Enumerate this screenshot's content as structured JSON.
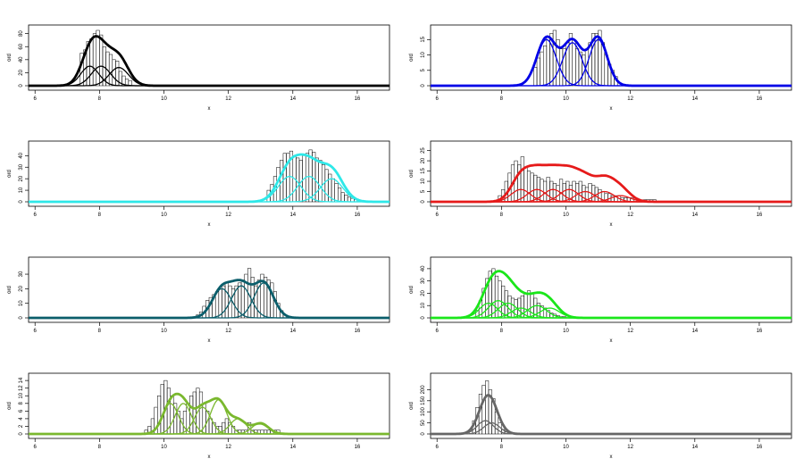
{
  "chart_data": [
    {
      "type": "histogram-density",
      "color": "#000000",
      "xlabel": "x",
      "ylabel": "ord",
      "xlim": [
        5.8,
        17
      ],
      "x_ticks": [
        6,
        8,
        10,
        12,
        14,
        16
      ],
      "ylim": [
        0,
        85
      ],
      "y_ticks": [
        0,
        20,
        40,
        60,
        80
      ],
      "hist": {
        "start": 7.4,
        "end": 9.0,
        "heights": [
          50,
          55,
          68,
          72,
          80,
          85,
          78,
          60,
          52,
          48,
          40,
          38,
          22,
          15,
          10,
          8
        ]
      },
      "components": [
        {
          "mean": 7.7,
          "sd": 0.28,
          "peak": 30
        },
        {
          "mean": 8.05,
          "sd": 0.3,
          "peak": 30
        },
        {
          "mean": 8.6,
          "sd": 0.3,
          "peak": 28
        }
      ],
      "mixture_peak": 76
    },
    {
      "type": "histogram-density",
      "color": "#0000e6",
      "xlabel": "x",
      "ylabel": "ord",
      "xlim": [
        5.8,
        17
      ],
      "x_ticks": [
        6,
        8,
        10,
        12,
        14,
        16
      ],
      "ylim": [
        0,
        18
      ],
      "y_ticks": [
        0,
        5,
        10,
        15
      ],
      "hist": {
        "start": 9.0,
        "end": 11.6,
        "heights": [
          6,
          9,
          11,
          13,
          16,
          17,
          18,
          15,
          12,
          12,
          14,
          17,
          15,
          12,
          11,
          10,
          12,
          14,
          17,
          17,
          18,
          14,
          10,
          7,
          5,
          3
        ]
      },
      "components": [
        {
          "mean": 9.4,
          "sd": 0.3,
          "peak": 15
        },
        {
          "mean": 10.2,
          "sd": 0.3,
          "peak": 14
        },
        {
          "mean": 11.0,
          "sd": 0.28,
          "peak": 15
        }
      ],
      "mixture_peak": 16
    },
    {
      "type": "histogram-density",
      "color": "#2ee8e8",
      "xlabel": "x",
      "ylabel": "ord",
      "xlim": [
        5.8,
        17
      ],
      "x_ticks": [
        6,
        8,
        10,
        12,
        14,
        16
      ],
      "ylim": [
        0,
        48
      ],
      "y_ticks": [
        0,
        10,
        20,
        30,
        40
      ],
      "hist": {
        "start": 13.2,
        "end": 16.0,
        "heights": [
          10,
          15,
          22,
          30,
          36,
          42,
          42,
          44,
          40,
          38,
          36,
          40,
          42,
          45,
          43,
          38,
          36,
          32,
          28,
          24,
          20,
          16,
          12,
          8,
          6,
          4,
          3,
          2
        ]
      },
      "components": [
        {
          "mean": 13.9,
          "sd": 0.35,
          "peak": 22
        },
        {
          "mean": 14.5,
          "sd": 0.35,
          "peak": 22
        },
        {
          "mean": 15.2,
          "sd": 0.35,
          "peak": 20
        }
      ],
      "mixture_peak": 41
    },
    {
      "type": "histogram-density",
      "color": "#e61a1a",
      "xlabel": "x",
      "ylabel": "ord",
      "xlim": [
        5.8,
        17
      ],
      "x_ticks": [
        6,
        8,
        10,
        12,
        14,
        16
      ],
      "ylim": [
        0,
        27
      ],
      "y_ticks": [
        0,
        5,
        10,
        15,
        20,
        25
      ],
      "hist": {
        "start": 7.9,
        "end": 12.8,
        "heights": [
          3,
          6,
          10,
          14,
          18,
          20,
          18,
          22,
          17,
          15,
          14,
          13,
          12,
          11,
          10,
          12,
          10,
          9,
          8,
          11,
          9,
          10,
          8,
          10,
          9,
          10,
          8,
          7,
          9,
          8,
          7,
          6,
          5,
          4,
          4,
          3,
          3,
          3,
          2,
          2,
          2,
          2,
          1,
          1,
          1,
          1,
          1,
          1,
          1
        ]
      },
      "components": [
        {
          "mean": 8.6,
          "sd": 0.3,
          "peak": 6
        },
        {
          "mean": 9.1,
          "sd": 0.3,
          "peak": 6
        },
        {
          "mean": 9.6,
          "sd": 0.3,
          "peak": 6
        },
        {
          "mean": 10.1,
          "sd": 0.3,
          "peak": 6
        },
        {
          "mean": 10.6,
          "sd": 0.3,
          "peak": 5
        },
        {
          "mean": 11.2,
          "sd": 0.3,
          "peak": 5
        },
        {
          "mean": 11.7,
          "sd": 0.3,
          "peak": 3
        }
      ],
      "mixture_peak": 18
    },
    {
      "type": "histogram-density",
      "color": "#0b5e6b",
      "xlabel": "x",
      "ylabel": "ord",
      "xlim": [
        5.8,
        17
      ],
      "x_ticks": [
        6,
        8,
        10,
        12,
        14,
        16
      ],
      "ylim": [
        0,
        38
      ],
      "y_ticks": [
        0,
        10,
        20,
        30
      ],
      "hist": {
        "start": 11.0,
        "end": 13.8,
        "heights": [
          2,
          4,
          8,
          12,
          14,
          16,
          18,
          20,
          22,
          24,
          22,
          20,
          22,
          24,
          26,
          30,
          34,
          28,
          22,
          26,
          30,
          28,
          26,
          24,
          18,
          10,
          5,
          2
        ]
      },
      "components": [
        {
          "mean": 11.8,
          "sd": 0.3,
          "peak": 20
        },
        {
          "mean": 12.4,
          "sd": 0.3,
          "peak": 22
        },
        {
          "mean": 13.1,
          "sd": 0.3,
          "peak": 24
        }
      ],
      "mixture_peak": 26
    },
    {
      "type": "histogram-density",
      "color": "#1ae61a",
      "xlabel": "x",
      "ylabel": "ord",
      "xlim": [
        5.8,
        17
      ],
      "x_ticks": [
        6,
        8,
        10,
        12,
        14,
        16
      ],
      "ylim": [
        0,
        45
      ],
      "y_ticks": [
        0,
        10,
        20,
        30,
        40
      ],
      "hist": {
        "start": 7.2,
        "end": 10.0,
        "heights": [
          6,
          14,
          24,
          32,
          38,
          40,
          34,
          30,
          26,
          22,
          18,
          16,
          15,
          16,
          18,
          20,
          22,
          20,
          16,
          12,
          10,
          8,
          6,
          4,
          3,
          2,
          1,
          1
        ]
      },
      "components": [
        {
          "mean": 7.6,
          "sd": 0.28,
          "peak": 12
        },
        {
          "mean": 7.9,
          "sd": 0.3,
          "peak": 14
        },
        {
          "mean": 8.2,
          "sd": 0.3,
          "peak": 12
        },
        {
          "mean": 8.6,
          "sd": 0.3,
          "peak": 8
        },
        {
          "mean": 9.1,
          "sd": 0.3,
          "peak": 10
        },
        {
          "mean": 9.5,
          "sd": 0.3,
          "peak": 8
        }
      ],
      "mixture_peak": 38
    },
    {
      "type": "histogram-density",
      "color": "#7ab82e",
      "xlabel": "x",
      "ylabel": "ord",
      "xlim": [
        5.8,
        17
      ],
      "x_ticks": [
        6,
        8,
        10,
        12,
        14,
        16
      ],
      "ylim": [
        0,
        14.5
      ],
      "y_ticks": [
        0,
        2,
        4,
        6,
        8,
        10,
        12,
        14
      ],
      "hist": {
        "start": 9.4,
        "end": 13.6,
        "heights": [
          1,
          2,
          4,
          7,
          10,
          13,
          14,
          12,
          10,
          8,
          6,
          4,
          6,
          8,
          10,
          11,
          12,
          11,
          8,
          6,
          4,
          3,
          2,
          2,
          3,
          4,
          3,
          2,
          1,
          1,
          1,
          1,
          3,
          1,
          1,
          1,
          1,
          1,
          1,
          1,
          1,
          1
        ]
      },
      "components": [
        {
          "mean": 10.2,
          "sd": 0.25,
          "peak": 8
        },
        {
          "mean": 10.6,
          "sd": 0.25,
          "peak": 8
        },
        {
          "mean": 11.2,
          "sd": 0.25,
          "peak": 7
        },
        {
          "mean": 11.7,
          "sd": 0.25,
          "peak": 9
        },
        {
          "mean": 12.3,
          "sd": 0.25,
          "peak": 4
        },
        {
          "mean": 13.0,
          "sd": 0.25,
          "peak": 3
        }
      ],
      "mixture_peak": 10.5
    },
    {
      "type": "histogram-density",
      "color": "#666666",
      "xlabel": "x",
      "ylabel": "ord",
      "xlim": [
        5.8,
        17
      ],
      "x_ticks": [
        6,
        8,
        10,
        12,
        14,
        16
      ],
      "ylim": [
        0,
        250
      ],
      "y_ticks": [
        0,
        50,
        100,
        150,
        200
      ],
      "hist": {
        "start": 7.0,
        "end": 8.4,
        "heights": [
          20,
          60,
          120,
          180,
          220,
          240,
          200,
          160,
          100,
          50,
          20,
          10,
          5,
          2
        ]
      },
      "components": [
        {
          "mean": 7.5,
          "sd": 0.25,
          "peak": 60
        },
        {
          "mean": 7.7,
          "sd": 0.25,
          "peak": 50
        }
      ],
      "mixture_peak": 175
    }
  ]
}
